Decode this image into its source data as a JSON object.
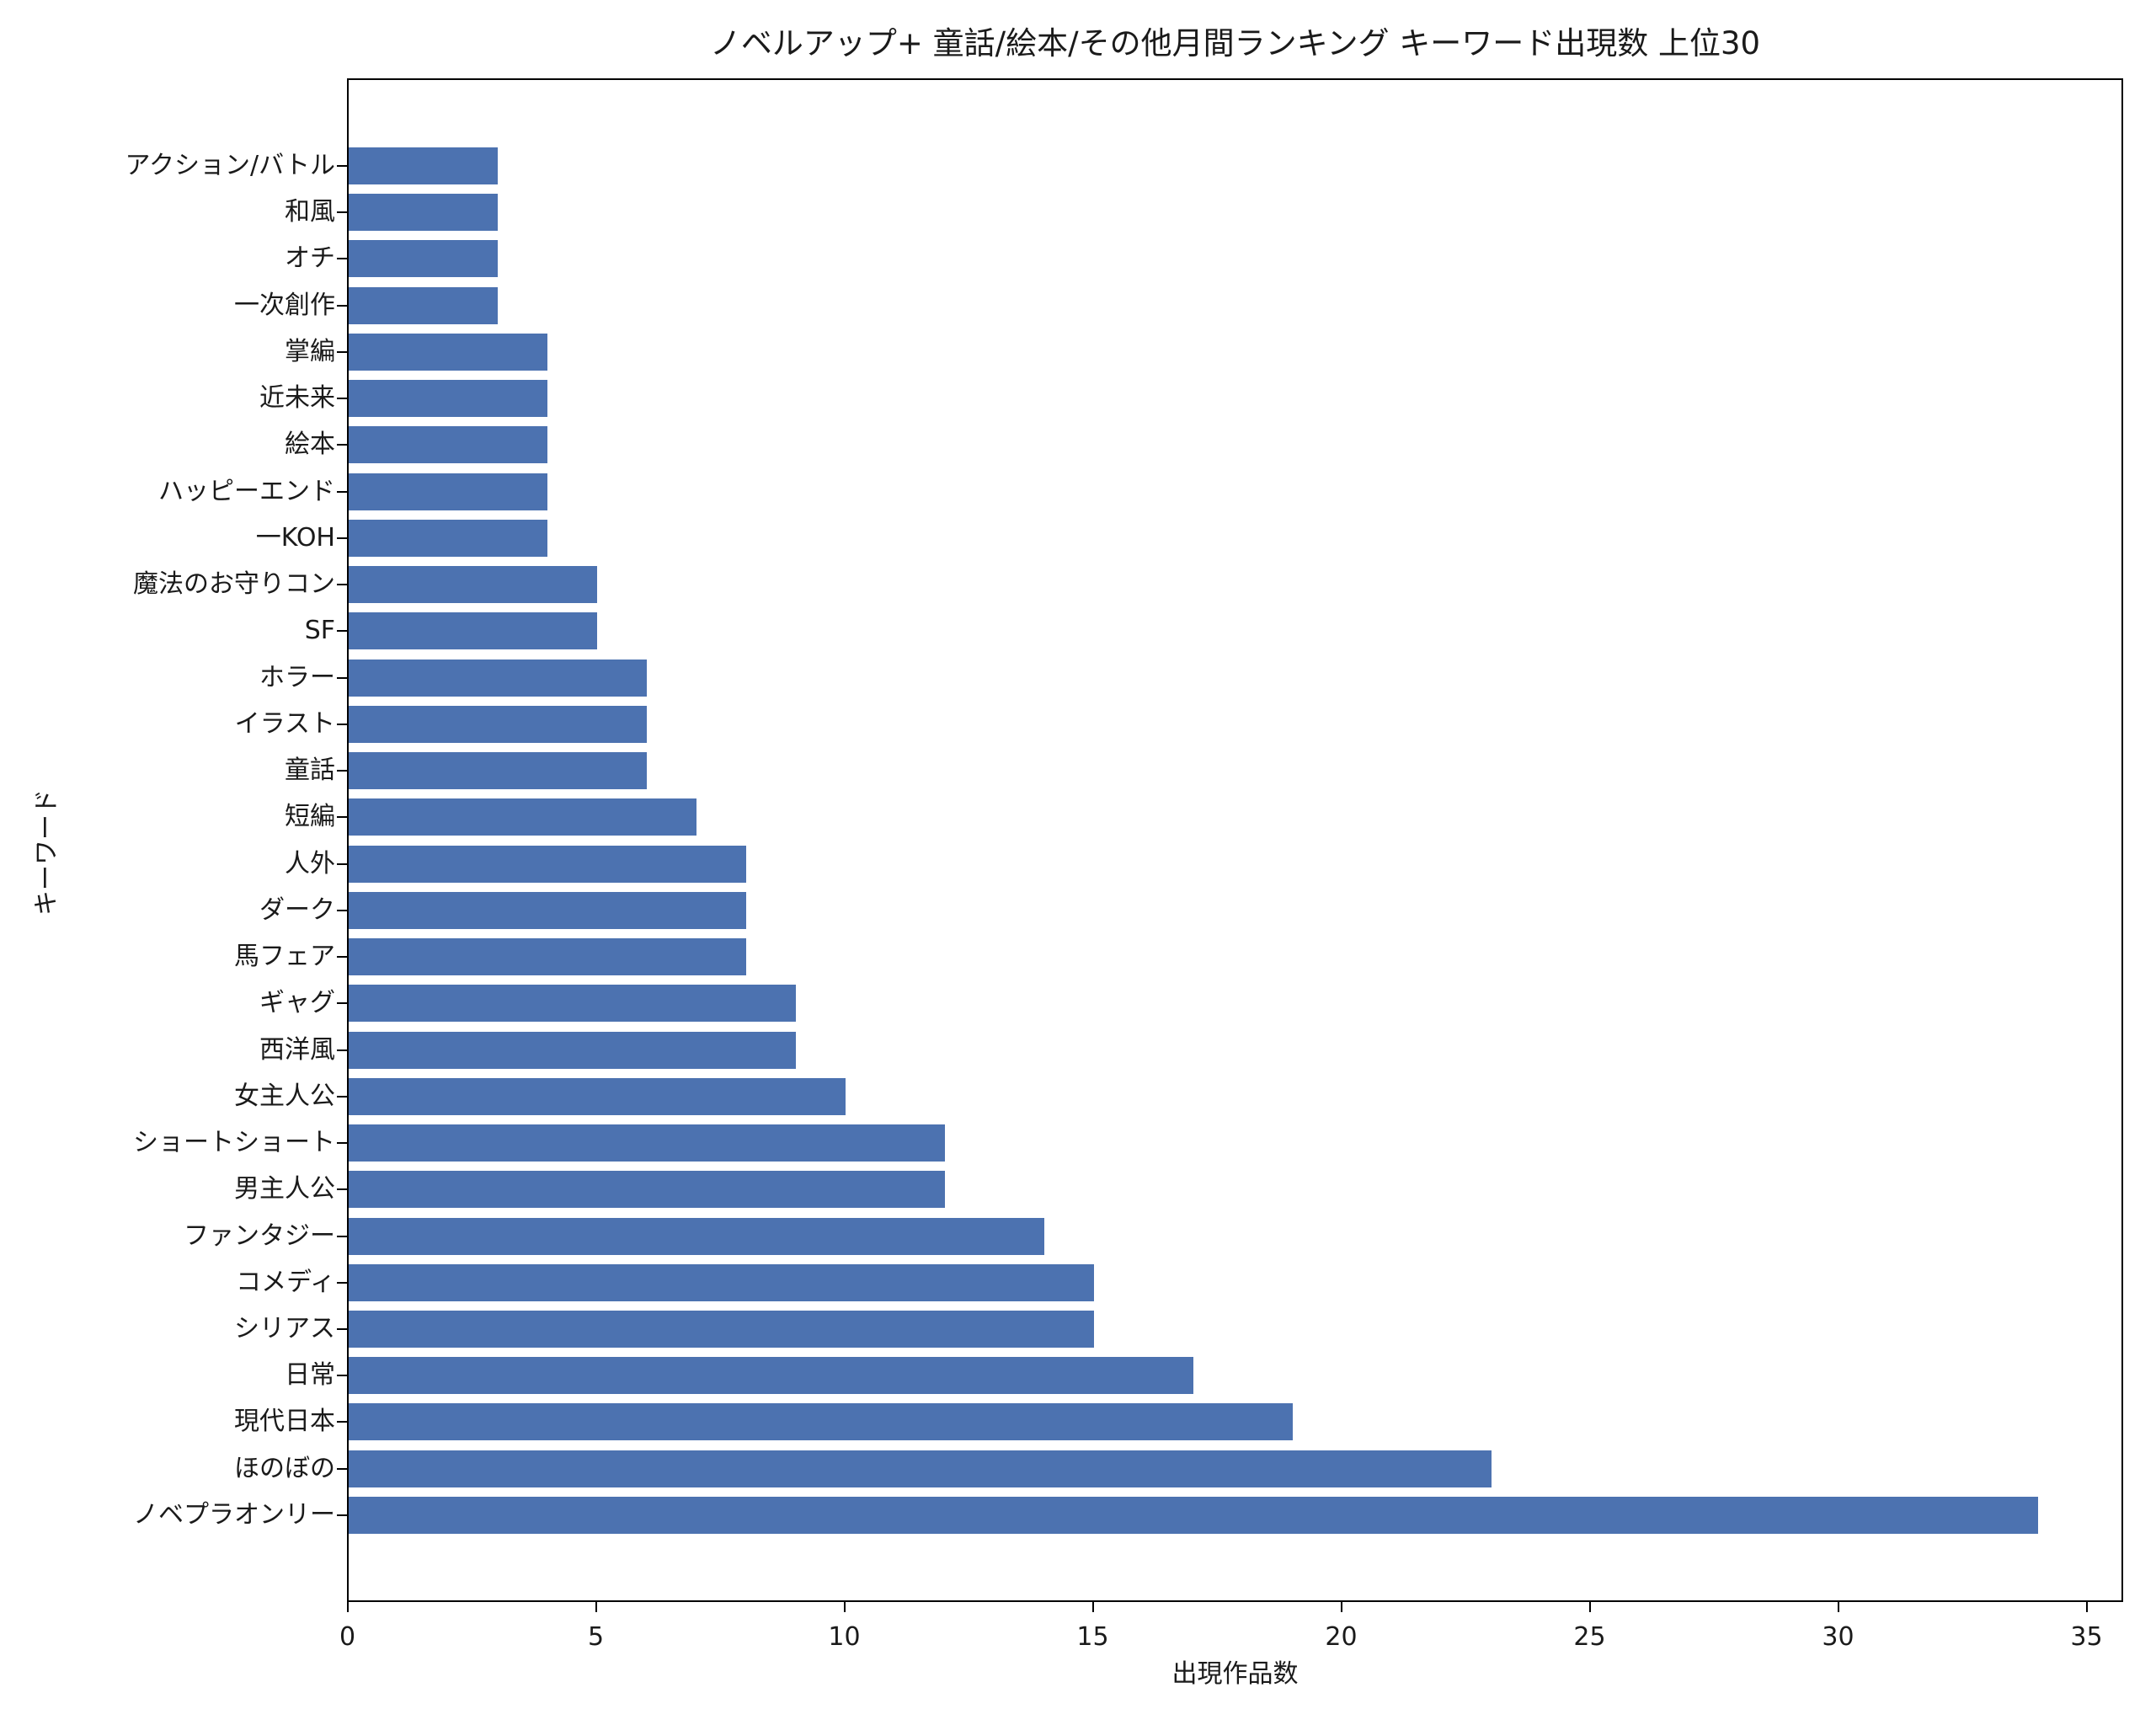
{
  "chart_data": {
    "type": "bar",
    "orientation": "horizontal",
    "title": "ノベルアップ+ 童話/絵本/その他月間ランキング キーワード出現数 上位30",
    "xlabel": "出現作品数",
    "ylabel": "キーワード",
    "xlim": [
      0,
      35.7
    ],
    "xticks": [
      0,
      5,
      10,
      15,
      20,
      25,
      30,
      35
    ],
    "grid": false,
    "legend": null,
    "bar_color": "#4c72b0",
    "categories": [
      "アクション/バトル",
      "和風",
      "オチ",
      "一次創作",
      "掌編",
      "近未来",
      "絵本",
      "ハッピーエンド",
      "一KOH",
      "魔法のお守りコン",
      "SF",
      "ホラー",
      "イラスト",
      "童話",
      "短編",
      "人外",
      "ダーク",
      "馬フェア",
      "ギャグ",
      "西洋風",
      "女主人公",
      "ショートショート",
      "男主人公",
      "ファンタジー",
      "コメディ",
      "シリアス",
      "日常",
      "現代日本",
      "ほのぼの",
      "ノベプラオンリー"
    ],
    "values": [
      3,
      3,
      3,
      3,
      4,
      4,
      4,
      4,
      4,
      5,
      5,
      6,
      6,
      6,
      7,
      8,
      8,
      8,
      9,
      9,
      10,
      12,
      12,
      14,
      15,
      15,
      17,
      19,
      23,
      34
    ]
  }
}
